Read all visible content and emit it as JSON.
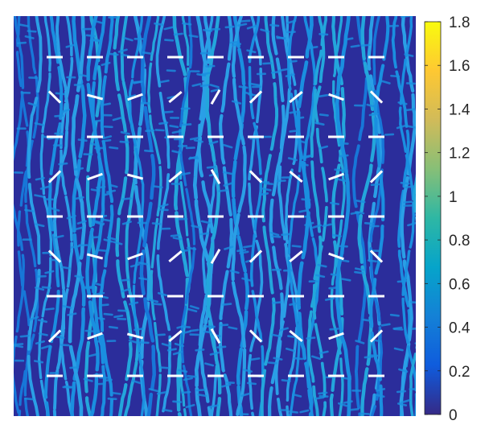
{
  "chart_data": {
    "type": "heatmap",
    "title": "",
    "xlabel": "",
    "ylabel": "",
    "colormap": "parula",
    "colorbar": {
      "range": [
        0,
        1.8
      ],
      "ticks": [
        0,
        0.2,
        0.4,
        0.6,
        0.8,
        1,
        1.2,
        1.4,
        1.6,
        1.8
      ],
      "tick_labels": [
        "0",
        "0.2",
        "0.4",
        "0.6",
        "0.8",
        "1",
        "1.2",
        "1.4",
        "1.6",
        "1.8"
      ]
    },
    "field_description": "labyrinthine stripe pattern; values mostly between 0 and 0.6",
    "overlay_segments": {
      "color": "#ffffff",
      "grid_rows": 9,
      "grid_cols": 9,
      "angles_deg": [
        [
          0,
          0,
          0,
          0,
          0,
          0,
          0,
          0,
          0
        ],
        [
          45,
          15,
          -20,
          -40,
          -60,
          -45,
          -40,
          20,
          45
        ],
        [
          0,
          0,
          0,
          0,
          0,
          0,
          0,
          0,
          0
        ],
        [
          -45,
          -20,
          15,
          -40,
          60,
          45,
          40,
          -20,
          -45
        ],
        [
          0,
          0,
          0,
          0,
          0,
          0,
          0,
          0,
          0
        ],
        [
          45,
          15,
          -20,
          -40,
          -60,
          -45,
          -40,
          20,
          45
        ],
        [
          0,
          0,
          0,
          0,
          0,
          0,
          0,
          0,
          0
        ],
        [
          -45,
          -20,
          15,
          -40,
          60,
          45,
          40,
          -20,
          -45
        ],
        [
          0,
          0,
          0,
          0,
          0,
          0,
          0,
          0,
          0
        ]
      ]
    }
  }
}
